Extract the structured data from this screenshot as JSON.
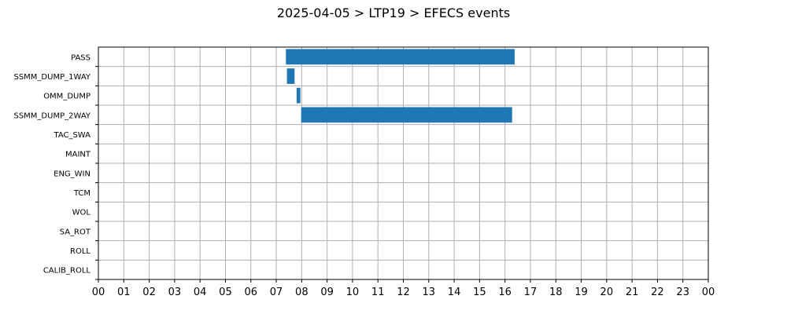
{
  "chart_data": {
    "type": "bar",
    "orientation": "horizontal",
    "title": "2025-04-05 > LTP19 > EFECS events",
    "categories": [
      "PASS",
      "SSMM_DUMP_1WAY",
      "OMM_DUMP",
      "SSMM_DUMP_2WAY",
      "TAC_SWA",
      "MAINT",
      "ENG_WIN",
      "TCM",
      "WOL",
      "SA_ROT",
      "ROLL",
      "CALIB_ROLL"
    ],
    "x_tick_labels": [
      "00",
      "01",
      "02",
      "03",
      "04",
      "05",
      "06",
      "07",
      "08",
      "09",
      "10",
      "11",
      "12",
      "13",
      "14",
      "15",
      "16",
      "17",
      "18",
      "19",
      "20",
      "21",
      "22",
      "23",
      "00"
    ],
    "xlim": [
      0,
      24
    ],
    "x_unit": "hours",
    "grid": true,
    "bar_color": "#1f77b4",
    "series": [
      {
        "events": [
          {
            "category": "PASS",
            "start": 7.38,
            "end": 16.38
          },
          {
            "category": "SSMM_DUMP_1WAY",
            "start": 7.42,
            "end": 7.72
          },
          {
            "category": "OMM_DUMP",
            "start": 7.8,
            "end": 7.95
          },
          {
            "category": "SSMM_DUMP_2WAY",
            "start": 7.98,
            "end": 16.28
          }
        ]
      }
    ]
  }
}
